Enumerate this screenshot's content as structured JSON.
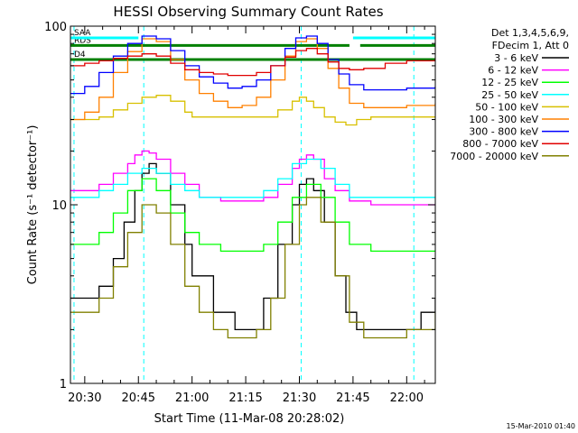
{
  "chart_data": {
    "type": "line",
    "title": "HESSI Observing Summary Count Rates",
    "xlabel": "Start Time (11-Mar-08 20:28:02)",
    "ylabel": "Count Rate (s⁻¹ detector⁻¹)",
    "yscale": "log",
    "ylim": [
      1,
      100
    ],
    "xlim": [
      "20:26",
      "22:08"
    ],
    "x_unit": "minutes after 20:00 (11-Mar-08)",
    "x_ticks": [
      {
        "value": 30,
        "label": "20:30"
      },
      {
        "value": 45,
        "label": "20:45"
      },
      {
        "value": 60,
        "label": "21:00"
      },
      {
        "value": 75,
        "label": "21:15"
      },
      {
        "value": 90,
        "label": "21:30"
      },
      {
        "value": 105,
        "label": "21:45"
      },
      {
        "value": 120,
        "label": "22:00"
      }
    ],
    "y_ticks": [
      {
        "value": 1,
        "label": "1"
      },
      {
        "value": 10,
        "label": "10"
      },
      {
        "value": 100,
        "label": "100"
      }
    ],
    "legend": {
      "position": "right",
      "header": [
        "Det 1,3,4,5,6,9,",
        "FDecim 1, Att 0"
      ]
    },
    "series": [
      {
        "name": "3 - 6 keV",
        "color": "#000000",
        "x": [
          26,
          30,
          34,
          38,
          41,
          44,
          46,
          48,
          50,
          54,
          58,
          60,
          66,
          72,
          78,
          80,
          84,
          88,
          90,
          92,
          94,
          97,
          100,
          103,
          106,
          110,
          114,
          120,
          124,
          128
        ],
        "values": [
          3,
          3,
          3.5,
          5,
          8,
          12,
          15,
          17,
          15,
          10,
          6,
          4,
          2.5,
          2,
          2,
          3,
          6,
          10,
          13,
          14,
          12,
          8,
          4,
          2.5,
          2,
          2,
          2,
          2,
          2.5,
          3
        ]
      },
      {
        "name": "6 - 12 keV",
        "color": "#ff00ff",
        "x": [
          26,
          30,
          34,
          38,
          42,
          44,
          46,
          48,
          50,
          54,
          58,
          62,
          68,
          74,
          80,
          84,
          88,
          90,
          92,
          94,
          97,
          100,
          104,
          110,
          116,
          122,
          128
        ],
        "values": [
          12,
          12,
          13,
          15,
          17,
          19,
          20,
          19.5,
          18,
          15,
          13,
          11,
          10.5,
          10.5,
          11,
          13,
          16,
          18,
          19,
          18,
          14,
          12,
          10.5,
          10,
          10,
          10,
          10
        ]
      },
      {
        "name": "12 - 25 keV",
        "color": "#00ff00",
        "x": [
          26,
          30,
          34,
          38,
          42,
          46,
          50,
          54,
          58,
          62,
          68,
          74,
          80,
          84,
          88,
          92,
          96,
          100,
          104,
          110,
          116,
          122,
          128
        ],
        "values": [
          6,
          6,
          7,
          9,
          12,
          14,
          12,
          9,
          7,
          6,
          5.5,
          5.5,
          6,
          8,
          11,
          13,
          11,
          8,
          6,
          5.5,
          5.5,
          5.5,
          5.5
        ]
      },
      {
        "name": "25 - 50 keV",
        "color": "#00ffff",
        "x": [
          26,
          30,
          34,
          38,
          42,
          46,
          50,
          54,
          58,
          62,
          68,
          74,
          80,
          84,
          88,
          92,
          96,
          100,
          104,
          110,
          116,
          122,
          128
        ],
        "values": [
          11,
          11,
          12,
          13,
          15,
          16,
          15,
          13,
          12,
          11,
          11,
          11,
          12,
          14,
          17,
          18,
          16,
          13,
          11,
          11,
          11,
          11,
          11
        ]
      },
      {
        "name": "50 - 100 keV",
        "color": "#d8c000",
        "x": [
          26,
          30,
          34,
          38,
          42,
          46,
          50,
          54,
          58,
          60,
          66,
          72,
          78,
          84,
          88,
          90,
          92,
          94,
          97,
          100,
          103,
          106,
          110,
          116,
          122,
          128
        ],
        "values": [
          30,
          30,
          31,
          34,
          37,
          40,
          41,
          38,
          33,
          31,
          31,
          31,
          31,
          34,
          38,
          40,
          38,
          35,
          31,
          29,
          28,
          30,
          31,
          31,
          31,
          31
        ]
      },
      {
        "name": "100 - 300 keV",
        "color": "#ff8000",
        "x": [
          26,
          30,
          34,
          38,
          42,
          46,
          50,
          54,
          58,
          62,
          66,
          70,
          74,
          78,
          82,
          86,
          89,
          92,
          95,
          98,
          101,
          104,
          108,
          114,
          120,
          128
        ],
        "values": [
          30,
          33,
          40,
          55,
          72,
          85,
          82,
          65,
          50,
          42,
          38,
          35,
          36,
          40,
          50,
          68,
          82,
          85,
          75,
          58,
          45,
          37,
          35,
          35,
          36,
          37
        ]
      },
      {
        "name": "300 - 800 keV",
        "color": "#0000ff",
        "x": [
          26,
          30,
          34,
          38,
          42,
          46,
          50,
          54,
          58,
          62,
          66,
          70,
          74,
          78,
          82,
          86,
          89,
          92,
          95,
          98,
          101,
          104,
          108,
          114,
          120,
          128
        ],
        "values": [
          42,
          46,
          55,
          68,
          80,
          88,
          85,
          73,
          60,
          52,
          48,
          45,
          46,
          50,
          60,
          75,
          86,
          88,
          80,
          65,
          54,
          47,
          44,
          44,
          45,
          46
        ]
      },
      {
        "name": "800 - 7000 keV",
        "color": "#e00000",
        "x": [
          26,
          30,
          34,
          38,
          42,
          46,
          50,
          54,
          58,
          62,
          66,
          70,
          74,
          78,
          82,
          86,
          89,
          92,
          95,
          98,
          101,
          104,
          108,
          114,
          120,
          128
        ],
        "values": [
          60,
          62,
          64,
          66,
          68,
          70,
          68,
          62,
          57,
          55,
          54,
          53,
          53,
          55,
          60,
          67,
          73,
          75,
          70,
          63,
          58,
          57,
          58,
          62,
          64,
          66
        ]
      },
      {
        "name": "7000 - 20000 keV",
        "color": "#808000",
        "x": [
          26,
          30,
          34,
          38,
          42,
          46,
          50,
          54,
          58,
          62,
          66,
          70,
          74,
          78,
          82,
          86,
          90,
          92,
          96,
          100,
          104,
          108,
          114,
          120,
          128
        ],
        "values": [
          2.5,
          2.5,
          3,
          4.5,
          7,
          10,
          9,
          6,
          3.5,
          2.5,
          2,
          1.8,
          1.8,
          2,
          3,
          6,
          10,
          11,
          8,
          4,
          2.2,
          1.8,
          1.8,
          2,
          2.5
        ]
      }
    ],
    "flags": [
      {
        "label": "RDS",
        "color": "#008000",
        "y": 78,
        "segments": [
          [
            26,
            104
          ],
          [
            107,
            128
          ]
        ]
      },
      {
        "label": "SAA",
        "color": "#00ffff",
        "y": 86,
        "segments": [
          [
            26,
            45
          ],
          [
            105,
            128
          ]
        ]
      },
      {
        "label": "D4",
        "color": "#008000",
        "y": 65,
        "segments": [
          [
            26,
            128
          ]
        ]
      }
    ],
    "vertical_markers": [
      {
        "x": 27,
        "color": "#00ffff"
      },
      {
        "x": 46.5,
        "color": "#00ffff"
      },
      {
        "x": 90.5,
        "color": "#00ffff"
      },
      {
        "x": 122,
        "color": "#00ffff"
      }
    ],
    "footer": "15-Mar-2010 01:40"
  }
}
